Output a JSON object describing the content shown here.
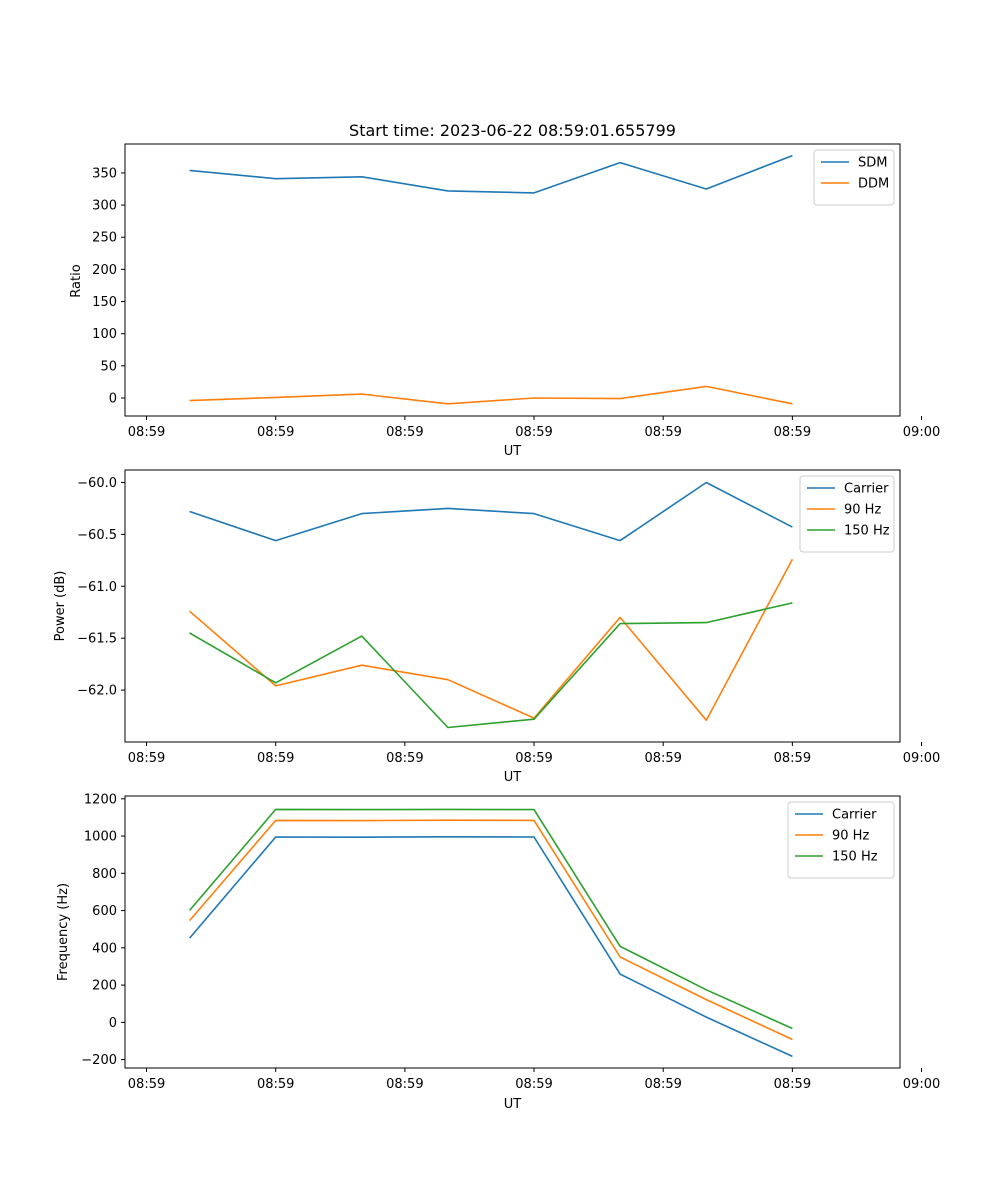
{
  "colors": {
    "c0": "#1f77b4",
    "c1": "#ff7f0e",
    "c2": "#2ca02c"
  },
  "chart_data": [
    {
      "type": "line",
      "title": "Start time: 2023-06-22 08:59:01.655799",
      "xlabel": "UT",
      "ylabel": "Ratio",
      "x": [
        1,
        2,
        3,
        4,
        5,
        6,
        7,
        8
      ],
      "xlim": [
        0.25,
        9.25
      ],
      "ylim": [
        -28,
        395
      ],
      "xticks": [
        {
          "v": 0.5,
          "label": "08:59"
        },
        {
          "v": 2,
          "label": "08:59"
        },
        {
          "v": 3.5,
          "label": "08:59"
        },
        {
          "v": 5,
          "label": "08:59"
        },
        {
          "v": 6.5,
          "label": "08:59"
        },
        {
          "v": 8,
          "label": "08:59"
        },
        {
          "v": 9.5,
          "label": "09:00"
        }
      ],
      "yticks": [
        {
          "v": 0,
          "label": "0"
        },
        {
          "v": 50,
          "label": "50"
        },
        {
          "v": 100,
          "label": "100"
        },
        {
          "v": 150,
          "label": "150"
        },
        {
          "v": 200,
          "label": "200"
        },
        {
          "v": 250,
          "label": "250"
        },
        {
          "v": 300,
          "label": "300"
        },
        {
          "v": 350,
          "label": "350"
        }
      ],
      "legend": "top-right",
      "series": [
        {
          "name": "SDM",
          "color": "c0",
          "values": [
            354,
            341,
            344,
            322,
            319,
            366,
            325,
            377
          ]
        },
        {
          "name": "DDM",
          "color": "c1",
          "values": [
            -4,
            1,
            6,
            -9,
            0,
            -1,
            18,
            -9
          ]
        }
      ]
    },
    {
      "type": "line",
      "title": "",
      "xlabel": "UT",
      "ylabel": "Power (dB)",
      "x": [
        1,
        2,
        3,
        4,
        5,
        6,
        7,
        8
      ],
      "xlim": [
        0.25,
        9.25
      ],
      "ylim": [
        -62.5,
        -59.88
      ],
      "xticks": [
        {
          "v": 0.5,
          "label": "08:59"
        },
        {
          "v": 2,
          "label": "08:59"
        },
        {
          "v": 3.5,
          "label": "08:59"
        },
        {
          "v": 5,
          "label": "08:59"
        },
        {
          "v": 6.5,
          "label": "08:59"
        },
        {
          "v": 8,
          "label": "08:59"
        },
        {
          "v": 9.5,
          "label": "09:00"
        }
      ],
      "yticks": [
        {
          "v": -62.0,
          "label": "−62.0"
        },
        {
          "v": -61.5,
          "label": "−61.5"
        },
        {
          "v": -61.0,
          "label": "−61.0"
        },
        {
          "v": -60.5,
          "label": "−60.5"
        },
        {
          "v": -60.0,
          "label": "−60.0"
        }
      ],
      "legend": "top-right",
      "series": [
        {
          "name": "Carrier",
          "color": "c0",
          "values": [
            -60.28,
            -60.56,
            -60.3,
            -60.25,
            -60.3,
            -60.56,
            -60.0,
            -60.43
          ]
        },
        {
          "name": "90 Hz",
          "color": "c1",
          "values": [
            -61.24,
            -61.96,
            -61.76,
            -61.9,
            -62.27,
            -61.3,
            -62.29,
            -60.74
          ]
        },
        {
          "name": "150 Hz",
          "color": "c2",
          "values": [
            -61.45,
            -61.93,
            -61.48,
            -62.36,
            -62.28,
            -61.36,
            -61.35,
            -61.16
          ]
        }
      ]
    },
    {
      "type": "line",
      "title": "",
      "xlabel": "UT",
      "ylabel": "Frequency (Hz)",
      "x": [
        1,
        2,
        3,
        4,
        5,
        6,
        7,
        8
      ],
      "xlim": [
        0.25,
        9.25
      ],
      "ylim": [
        -245,
        1215
      ],
      "xticks": [
        {
          "v": 0.5,
          "label": "08:59"
        },
        {
          "v": 2,
          "label": "08:59"
        },
        {
          "v": 3.5,
          "label": "08:59"
        },
        {
          "v": 5,
          "label": "08:59"
        },
        {
          "v": 6.5,
          "label": "08:59"
        },
        {
          "v": 8,
          "label": "08:59"
        },
        {
          "v": 9.5,
          "label": "09:00"
        }
      ],
      "yticks": [
        {
          "v": -200,
          "label": "−200"
        },
        {
          "v": 0,
          "label": "0"
        },
        {
          "v": 200,
          "label": "200"
        },
        {
          "v": 400,
          "label": "400"
        },
        {
          "v": 600,
          "label": "600"
        },
        {
          "v": 800,
          "label": "800"
        },
        {
          "v": 1000,
          "label": "1000"
        },
        {
          "v": 1200,
          "label": "1200"
        }
      ],
      "legend": "top-right",
      "series": [
        {
          "name": "Carrier",
          "color": "c0",
          "values": [
            452,
            995,
            994,
            996,
            995,
            259,
            28,
            -183
          ]
        },
        {
          "name": "90 Hz",
          "color": "c1",
          "values": [
            546,
            1084,
            1083,
            1085,
            1084,
            351,
            122,
            -92
          ]
        },
        {
          "name": "150 Hz",
          "color": "c2",
          "values": [
            601,
            1143,
            1142,
            1143,
            1142,
            408,
            175,
            -33
          ]
        }
      ]
    }
  ]
}
